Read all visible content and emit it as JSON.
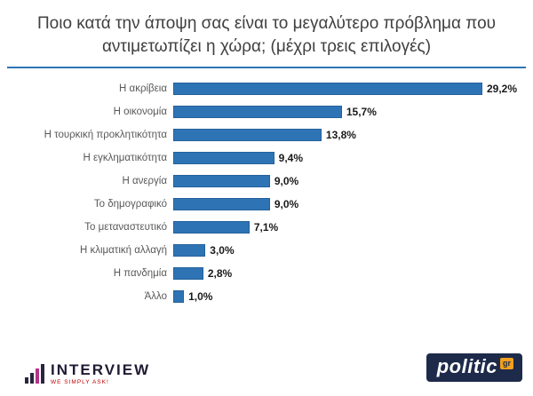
{
  "title": "Ποιο κατά την άποψη σας είναι το μεγαλύτερο πρόβλημα που αντιμετωπίζει η χώρα; (μέχρι τρεις επιλογές)",
  "colors": {
    "bar": "#2e74b5",
    "bar_border": "#24619c",
    "divider": "#2e74b5",
    "title_text": "#404040",
    "category_text": "#595959",
    "value_text": "#1a1a1a",
    "politic_bg": "#1e2a4a",
    "politic_accent": "#f0a01e",
    "tagline_red": "#c00000"
  },
  "chart_data": {
    "type": "bar",
    "orientation": "horizontal",
    "title": "Ποιο κατά την άποψη σας είναι το μεγαλύτερο πρόβλημα που αντιμετωπίζει η χώρα; (μέχρι τρεις επιλογές)",
    "categories": [
      "Η ακρίβεια",
      "Η οικονομία",
      "Η τουρκική προκλητικότητα",
      "Η εγκληματικότητα",
      "Η ανεργία",
      "Το δημογραφικό",
      "Το μεταναστευτικό",
      "Η κλιματική αλλαγή",
      "Η πανδημία",
      "Άλλο"
    ],
    "values": [
      29.2,
      15.7,
      13.8,
      9.4,
      9.0,
      9.0,
      7.1,
      3.0,
      2.8,
      1.0
    ],
    "value_labels": [
      "29,2%",
      "15,7%",
      "13,8%",
      "9,4%",
      "9,0%",
      "9,0%",
      "7,1%",
      "3,0%",
      "2,8%",
      "1,0%"
    ],
    "xlim": [
      0,
      32
    ],
    "grid": false,
    "legend": false
  },
  "footer": {
    "interview_name": "INTERVIEW",
    "interview_tagline": "We simply ask!",
    "politic_name": "politic",
    "politic_suffix": "gr"
  }
}
